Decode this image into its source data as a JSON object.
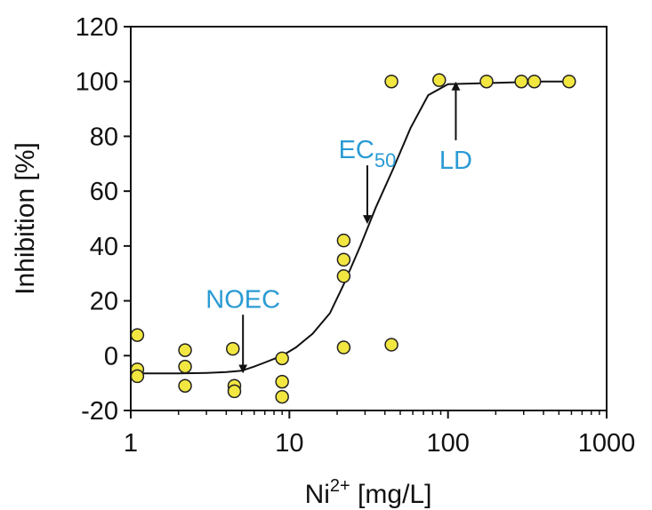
{
  "chart_data": {
    "type": "scatter",
    "title": "",
    "xlabel_main": "Ni",
    "xlabel_sup": "2+",
    "xlabel_unit": " [mg/L]",
    "ylabel": "Inhibition [%]",
    "xscale": "log",
    "xlim": [
      1,
      1000
    ],
    "ylim": [
      -20,
      120
    ],
    "x_ticks": [
      1,
      10,
      100,
      1000
    ],
    "x_tick_labels": [
      "1",
      "10",
      "100",
      "1000"
    ],
    "y_ticks": [
      -20,
      0,
      20,
      40,
      60,
      80,
      100,
      120
    ],
    "y_tick_labels": [
      "-20",
      "0",
      "20",
      "40",
      "60",
      "80",
      "100",
      "120"
    ],
    "grid": false,
    "legend": "none",
    "marker_color": "#f2e641",
    "marker_edge_color": "#222222",
    "line_color": "#111111",
    "annotation_color": "#2a9bd4",
    "points": [
      {
        "x": 1.1,
        "y": 7.5
      },
      {
        "x": 1.1,
        "y": -5
      },
      {
        "x": 1.1,
        "y": -7.5
      },
      {
        "x": 2.2,
        "y": 2
      },
      {
        "x": 2.2,
        "y": -4
      },
      {
        "x": 2.2,
        "y": -11
      },
      {
        "x": 4.4,
        "y": 2.5
      },
      {
        "x": 4.5,
        "y": -11
      },
      {
        "x": 4.5,
        "y": -13
      },
      {
        "x": 9,
        "y": -1
      },
      {
        "x": 9,
        "y": -9.5
      },
      {
        "x": 9,
        "y": -15
      },
      {
        "x": 22,
        "y": 42
      },
      {
        "x": 22,
        "y": 35
      },
      {
        "x": 22,
        "y": 29
      },
      {
        "x": 22,
        "y": 3
      },
      {
        "x": 44,
        "y": 100
      },
      {
        "x": 44,
        "y": 4
      },
      {
        "x": 88,
        "y": 100.5
      },
      {
        "x": 175,
        "y": 100
      },
      {
        "x": 290,
        "y": 100
      },
      {
        "x": 350,
        "y": 100
      },
      {
        "x": 580,
        "y": 100
      }
    ],
    "fit_curve": [
      {
        "x": 1.0,
        "y": -6.5
      },
      {
        "x": 2.0,
        "y": -6.5
      },
      {
        "x": 3.0,
        "y": -6.3
      },
      {
        "x": 4.0,
        "y": -6.0
      },
      {
        "x": 5.0,
        "y": -5.5
      },
      {
        "x": 6.0,
        "y": -4.0
      },
      {
        "x": 7.0,
        "y": -2.5
      },
      {
        "x": 9.0,
        "y": 0.0
      },
      {
        "x": 11.0,
        "y": 3.0
      },
      {
        "x": 14.0,
        "y": 8.0
      },
      {
        "x": 18.0,
        "y": 15.5
      },
      {
        "x": 22.0,
        "y": 26.0
      },
      {
        "x": 28.0,
        "y": 40.0
      },
      {
        "x": 35.0,
        "y": 54.0
      },
      {
        "x": 45.0,
        "y": 68.0
      },
      {
        "x": 58.0,
        "y": 83.0
      },
      {
        "x": 75.0,
        "y": 95.0
      },
      {
        "x": 100.0,
        "y": 99.0
      },
      {
        "x": 200.0,
        "y": 99.5
      },
      {
        "x": 400.0,
        "y": 100.0
      },
      {
        "x": 600.0,
        "y": 100.0
      }
    ],
    "annotations": [
      {
        "key": "noec",
        "label": "NOEC",
        "sub": "",
        "x": 5.1,
        "y": -5.5,
        "direction": "down"
      },
      {
        "key": "ec50",
        "label": "EC",
        "sub": "50",
        "x": 31,
        "y": 49,
        "direction": "down"
      },
      {
        "key": "ld",
        "label": "LD",
        "sub": "",
        "x": 112,
        "y": 99,
        "direction": "up"
      }
    ]
  }
}
